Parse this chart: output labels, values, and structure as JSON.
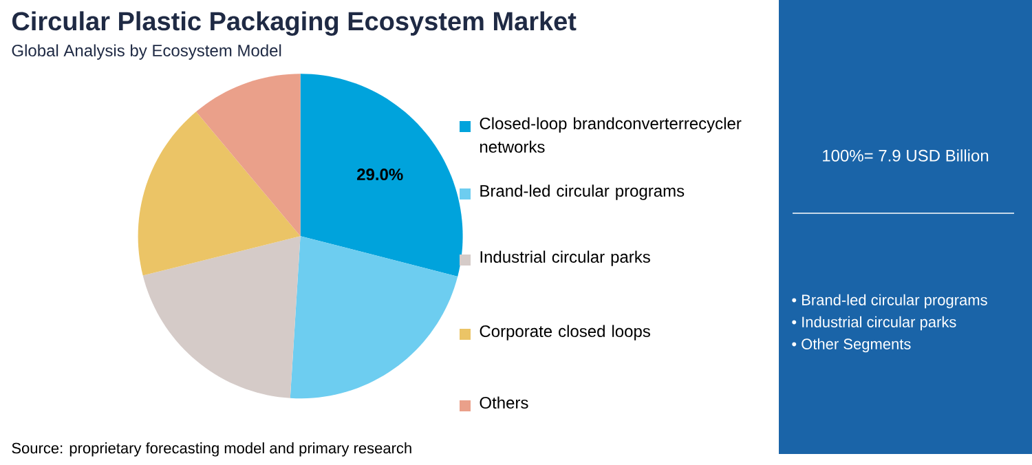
{
  "chart_data": {
    "type": "pie",
    "title": "Circular Plastic Packaging Ecosystem Market",
    "subtitle": "Global Analysis by Ecosystem Model",
    "categories": [
      "Closed-loop brandconverterrecycler networks",
      "Brand-led circular programs",
      "Industrial circular parks",
      "Corporate closed loops",
      "Others"
    ],
    "values": [
      29.0,
      22.0,
      20.1,
      17.8,
      11.1
    ],
    "value_labels": [
      "29.0%",
      null,
      null,
      null,
      null
    ],
    "colors": [
      "#00a3dc",
      "#6dcdf0",
      "#d5cbc8",
      "#ebc466",
      "#eaa08a"
    ],
    "legend": "right",
    "annotations": [
      "Source: proprietary forecasting model and primary research",
      "100%= 7.9 USD Billion",
      "• Brand-led circular programs",
      "• Industrial circular parks",
      "• Other Segments"
    ]
  }
}
